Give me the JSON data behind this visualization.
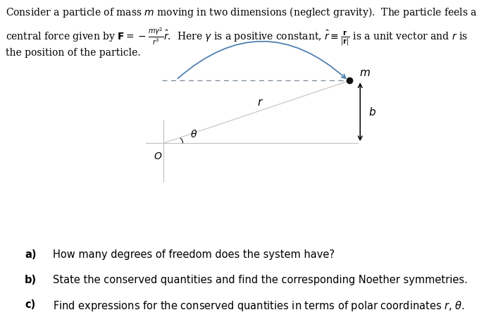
{
  "header_line1": "Consider a particle of mass $m$ moving in two dimensions (neglect gravity).  The particle feels a",
  "header_line2": "central force given by $\\mathbf{F} = -\\frac{m\\gamma^2}{r^3}\\hat{r}$.  Here $\\gamma$ is a positive constant, $\\hat{r} \\equiv \\frac{\\mathbf{r}}{|\\mathbf{r}|}$ is a unit vector and $r$ is",
  "header_line3": "the position of the particle.",
  "question_a_label": "a)",
  "question_b_label": "b)",
  "question_c_label": "c)",
  "question_a": "How many degrees of freedom does the system have?",
  "question_b": "State the conserved quantities and find the corresponding Noether symmetries.",
  "question_c": "Find expressions for the conserved quantities in terms of polar coordinates $r$, $\\theta$.",
  "bg_color": "#ffffff",
  "line_color": "#c8c8c8",
  "axis_color": "#c0c0c0",
  "arrow_curve_color": "#5080b0",
  "dashed_color": "#8090a0",
  "text_color": "#000000",
  "particle_color": "#111111",
  "ox": 0.325,
  "oy": 0.565,
  "mx": 0.695,
  "my": 0.755,
  "header_fontsize": 10.0,
  "label_fontsize": 10.5,
  "question_fontsize": 10.5
}
